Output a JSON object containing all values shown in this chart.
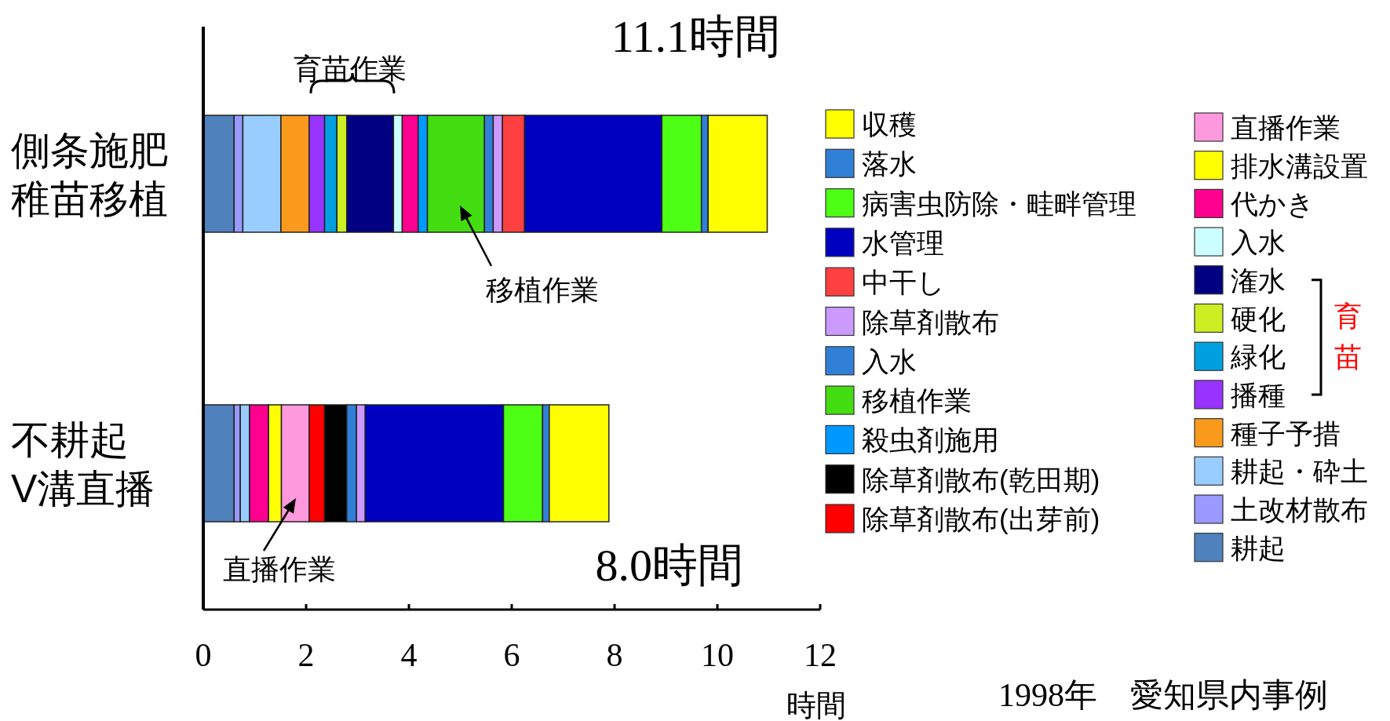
{
  "chart_data": {
    "type": "bar",
    "orientation": "horizontal",
    "stacked": true,
    "categories": [
      "側条施肥稚苗移植",
      "不耕起V溝直播"
    ],
    "xlabel": "時間",
    "xlim": [
      0,
      12
    ],
    "xticks": [
      0,
      2,
      4,
      6,
      8,
      10,
      12
    ],
    "legend": "right",
    "series": [
      {
        "name": "耕起",
        "color": "#4f81bd",
        "values": [
          0.6,
          0.6
        ]
      },
      {
        "name": "土改材散布",
        "color": "#9999ff",
        "values": [
          0.17,
          0.12
        ]
      },
      {
        "name": "耕起・砕土",
        "color": "#99ccff",
        "values": [
          0.74,
          0.18
        ]
      },
      {
        "name": "種子予措",
        "color": "#f99a1c",
        "values": [
          0.55,
          null
        ]
      },
      {
        "name": "播種",
        "color": "#9933ff",
        "values": [
          0.3,
          null
        ]
      },
      {
        "name": "緑化",
        "color": "#00a0e0",
        "values": [
          0.24,
          null
        ]
      },
      {
        "name": "硬化",
        "color": "#ccee22",
        "values": [
          0.19,
          null
        ]
      },
      {
        "name": "潅水",
        "color": "#000080",
        "values": [
          0.91,
          null
        ]
      },
      {
        "name": "入水",
        "color": "#ccffff",
        "values": [
          0.17,
          null
        ]
      },
      {
        "name": "代かき",
        "color": "#ff0090",
        "values": [
          0.31,
          0.37
        ]
      },
      {
        "name": "排水溝設置",
        "color": "#ffff00",
        "values": [
          null,
          0.25
        ]
      },
      {
        "name": "直播作業",
        "color": "#ff99dd",
        "values": [
          null,
          0.54
        ]
      },
      {
        "name": "除草剤散布(出芽前)",
        "color": "#ff0000",
        "values": [
          null,
          0.3
        ]
      },
      {
        "name": "除草剤散布(乾田期)",
        "color": "#000000",
        "values": [
          null,
          0.43
        ]
      },
      {
        "name": "殺虫剤施用",
        "color": "#0099ff",
        "values": [
          0.18,
          null
        ]
      },
      {
        "name": "移植作業",
        "color": "#44dd11",
        "values": [
          1.11,
          null
        ]
      },
      {
        "name": "入水",
        "color": "#3080d8",
        "values": [
          0.17,
          0.19
        ]
      },
      {
        "name": "除草剤散布",
        "color": "#cc99ff",
        "values": [
          0.18,
          0.17
        ]
      },
      {
        "name": "中干し",
        "color": "#ff4040",
        "values": [
          0.43,
          null
        ]
      },
      {
        "name": "水管理",
        "color": "#0000c0",
        "values": [
          2.67,
          2.69
        ]
      },
      {
        "name": "病害虫防除・畦畔管理",
        "color": "#4cff14",
        "values": [
          0.77,
          0.76
        ]
      },
      {
        "name": "落水",
        "color": "#3080d8",
        "values": [
          0.13,
          0.13
        ]
      },
      {
        "name": "収穫",
        "color": "#ffff00",
        "values": [
          1.15,
          1.16
        ]
      }
    ],
    "annotations": [
      "育苗作業",
      "11.1時間",
      "移植作業",
      "直播作業",
      "8.0時間",
      "育苗",
      "1998年　愛知県内事例"
    ]
  }
}
